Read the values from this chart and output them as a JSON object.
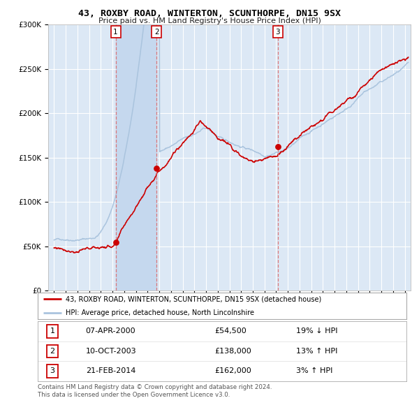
{
  "title": "43, ROXBY ROAD, WINTERTON, SCUNTHORPE, DN15 9SX",
  "subtitle": "Price paid vs. HM Land Registry's House Price Index (HPI)",
  "legend_label_red": "43, ROXBY ROAD, WINTERTON, SCUNTHORPE, DN15 9SX (detached house)",
  "legend_label_blue": "HPI: Average price, detached house, North Lincolnshire",
  "footer1": "Contains HM Land Registry data © Crown copyright and database right 2024.",
  "footer2": "This data is licensed under the Open Government Licence v3.0.",
  "transactions": [
    {
      "num": 1,
      "date": "07-APR-2000",
      "price": 54500,
      "hpi_diff": "19% ↓ HPI"
    },
    {
      "num": 2,
      "date": "10-OCT-2003",
      "price": 138000,
      "hpi_diff": "13% ↑ HPI"
    },
    {
      "num": 3,
      "date": "21-FEB-2014",
      "price": 162000,
      "hpi_diff": "3% ↑ HPI"
    }
  ],
  "transaction_dates_decimal": [
    2000.27,
    2003.78,
    2014.13
  ],
  "transaction_prices": [
    54500,
    138000,
    162000
  ],
  "ylim": [
    0,
    300000
  ],
  "yticks": [
    0,
    50000,
    100000,
    150000,
    200000,
    250000,
    300000
  ],
  "xlim_start": 1994.5,
  "xlim_end": 2025.5,
  "plot_bg_color": "#dce8f5",
  "grid_color": "#ffffff",
  "red_color": "#cc0000",
  "blue_color": "#aac4de",
  "span_color": "#c5d8ee",
  "vline_color": "#dd6666"
}
